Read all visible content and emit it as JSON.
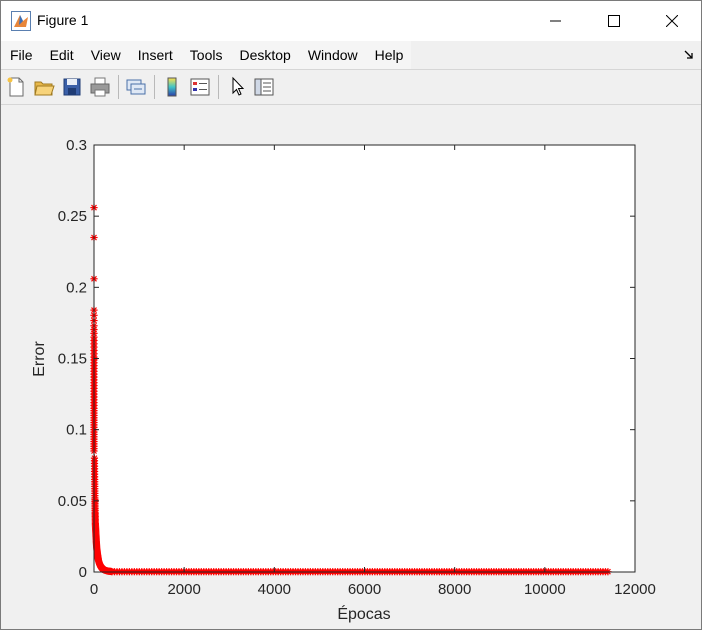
{
  "window": {
    "title": "Figure 1",
    "icon": "matlab-figure-icon"
  },
  "menu": {
    "items": [
      "File",
      "Edit",
      "View",
      "Insert",
      "Tools",
      "Desktop",
      "Window",
      "Help"
    ]
  },
  "toolbar": {
    "buttons": [
      "new-figure-icon",
      "open-file-icon",
      "save-icon",
      "print-icon",
      "link-plot-icon",
      "insert-colorbar-icon",
      "insert-legend-icon",
      "edit-plot-cursor-icon",
      "property-editor-icon"
    ]
  },
  "chart_data": {
    "type": "scatter",
    "marker": "asterisk",
    "color": "#ff0000",
    "title": "",
    "xlabel": "Épocas",
    "ylabel": "Error",
    "xlim": [
      0,
      12000
    ],
    "ylim": [
      0,
      0.3
    ],
    "xticks": [
      "0",
      "2000",
      "4000",
      "6000",
      "8000",
      "10000",
      "12000"
    ],
    "yticks": [
      "0",
      "0.05",
      "0.1",
      "0.15",
      "0.2",
      "0.25",
      "0.3"
    ],
    "grid": false,
    "x_start": 1,
    "x_end": 11400,
    "series": [
      {
        "points_high": [
          [
            0,
            0.256
          ],
          [
            0,
            0.235
          ],
          [
            0,
            0.206
          ],
          [
            0,
            0.184
          ],
          [
            0,
            0.173
          ],
          [
            0,
            0.165
          ],
          [
            0,
            0.158
          ],
          [
            0,
            0.151
          ],
          [
            0,
            0.145
          ],
          [
            0,
            0.139
          ],
          [
            0,
            0.133
          ],
          [
            0,
            0.127
          ],
          [
            0,
            0.121
          ],
          [
            0,
            0.115
          ],
          [
            0,
            0.11
          ],
          [
            0,
            0.105
          ],
          [
            0,
            0.1
          ],
          [
            0,
            0.095
          ],
          [
            0,
            0.09
          ],
          [
            0,
            0.085
          ]
        ],
        "decay_curve": [
          [
            10,
            0.08
          ],
          [
            15,
            0.065
          ],
          [
            20,
            0.052
          ],
          [
            25,
            0.042
          ],
          [
            30,
            0.034
          ],
          [
            40,
            0.028
          ],
          [
            50,
            0.022
          ],
          [
            60,
            0.017
          ],
          [
            80,
            0.012
          ],
          [
            100,
            0.008
          ],
          [
            130,
            0.005
          ],
          [
            170,
            0.003
          ],
          [
            220,
            0.0015
          ],
          [
            300,
            0.0007
          ],
          [
            400,
            0.0003
          ]
        ],
        "plateau_value": 0.0002
      }
    ]
  }
}
